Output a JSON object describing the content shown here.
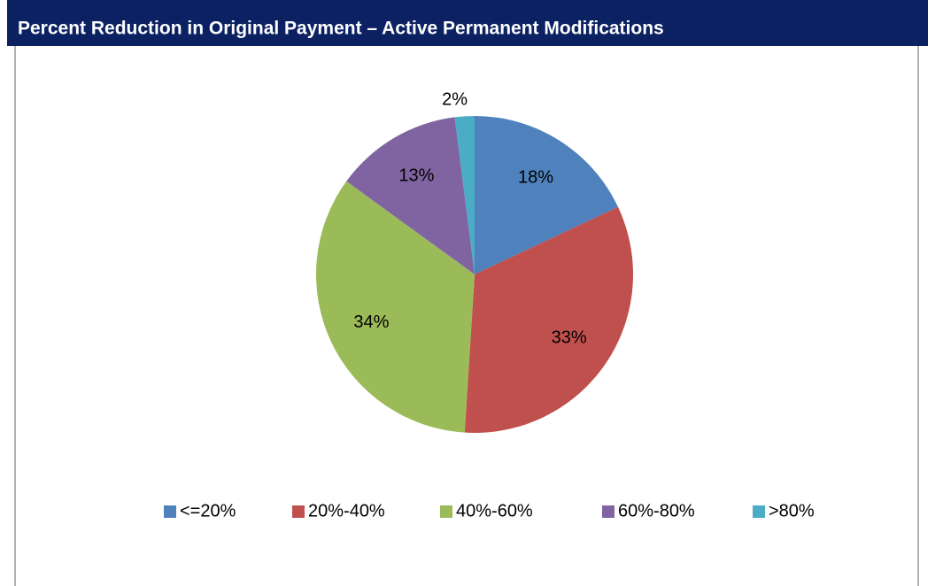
{
  "chart_data": {
    "type": "pie",
    "title": "Percent Reduction in Original Payment – Active Permanent Modifications",
    "categories": [
      "<=20%",
      "20%-40%",
      "40%-60%",
      "60%-80%",
      ">80%"
    ],
    "values": [
      18,
      33,
      34,
      13,
      2
    ],
    "value_labels": [
      "18%",
      "33%",
      "34%",
      "13%",
      "2%"
    ],
    "colors": [
      "#4f81bd",
      "#c0504d",
      "#9bbb59",
      "#8064a2",
      "#4bacc6"
    ],
    "legend": "bottom"
  }
}
